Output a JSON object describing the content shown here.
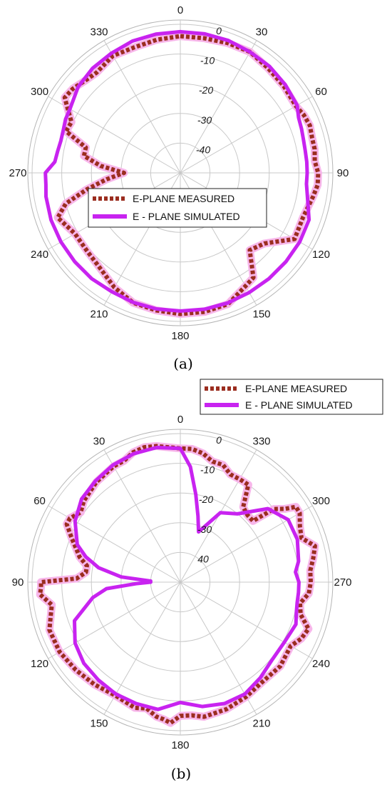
{
  "colors": {
    "measured": "#9b2d1f",
    "measured_halo": "#f7b6ea",
    "simulated": "#c823f0",
    "grid": "#c8c8c8",
    "ring": "#b4b4b4"
  },
  "chart_data": [
    {
      "type": "polar-line",
      "caption": "(a)",
      "angle_direction": "clockwise",
      "angle_ticks": [
        "0",
        "30",
        "60",
        "90",
        "120",
        "150",
        "180",
        "210",
        "240",
        "270",
        "300",
        "330"
      ],
      "radial_ticks": [
        "0",
        "-10",
        "-20",
        "-30",
        "-40"
      ],
      "rlim": [
        -50,
        0
      ],
      "legend_position": "center",
      "series": [
        {
          "name": "E-PLANE MEASURED",
          "theta": [
            0,
            10,
            20,
            30,
            40,
            50,
            60,
            65,
            70,
            75,
            80,
            85,
            90,
            95,
            100,
            110,
            120,
            130,
            138,
            145,
            150,
            160,
            170,
            180,
            190,
            200,
            210,
            220,
            230,
            240,
            250,
            255,
            260,
            265,
            270,
            275,
            280,
            285,
            290,
            295,
            300,
            303,
            308,
            315,
            320,
            330,
            340,
            350,
            360
          ],
          "r": [
            -4,
            -4,
            -3.5,
            -3,
            -4,
            -4.5,
            -5,
            -4,
            -3.5,
            -4,
            -4,
            -4.5,
            -3.5,
            -3.5,
            -4.5,
            -6,
            -5.5,
            -13,
            -15,
            -7,
            -6,
            -3,
            -2.5,
            -2.5,
            -3,
            -3.5,
            -5.5,
            -8,
            -9,
            -9,
            -6,
            -10,
            -18,
            -25,
            -31,
            -23,
            -17,
            -17,
            -9,
            -9.5,
            -6,
            -3.5,
            -4,
            -5.5,
            -6,
            -4.5,
            -5,
            -4.5,
            -4
          ]
        },
        {
          "name": "E - PLANE SIMULATED",
          "theta": [
            0,
            10,
            20,
            30,
            40,
            50,
            60,
            65,
            70,
            75,
            80,
            85,
            90,
            95,
            100,
            110,
            120,
            130,
            140,
            150,
            160,
            170,
            180,
            190,
            200,
            210,
            220,
            230,
            240,
            250,
            260,
            265,
            270,
            275,
            280,
            285,
            290,
            295,
            300,
            310,
            320,
            330,
            340,
            350,
            360
          ],
          "r": [
            -2.5,
            -2.5,
            -2.6,
            -3,
            -3.2,
            -3.8,
            -4.5,
            -6,
            -6.5,
            -7,
            -7.2,
            -7.2,
            -7.2,
            -7.3,
            -6.5,
            -3.8,
            -3.5,
            -3.5,
            -3.5,
            -3.5,
            -3.4,
            -3.4,
            -3.5,
            -3.5,
            -3.6,
            -3.8,
            -3.5,
            -3.5,
            -3.5,
            -3.6,
            -4,
            -4.5,
            -4.5,
            -7.5,
            -8,
            -8.3,
            -8,
            -7.3,
            -7,
            -5,
            -4,
            -3.5,
            -2.8,
            -2.6,
            -2.5
          ]
        }
      ]
    },
    {
      "type": "polar-line",
      "caption": "(b)",
      "angle_direction": "counterclockwise",
      "angle_ticks": [
        "0",
        "330",
        "300",
        "270",
        "240",
        "210",
        "180",
        "150",
        "120",
        "90",
        "60",
        "30"
      ],
      "radial_ticks": [
        "0",
        "-10",
        "-20",
        "-30",
        "40"
      ],
      "rlim": [
        -50,
        0
      ],
      "legend_position": "top-right",
      "series": [
        {
          "name": "E-PLANE MEASURED",
          "theta": [
            0,
            10,
            15,
            20,
            25,
            30,
            40,
            50,
            55,
            60,
            63,
            68,
            72,
            76,
            80,
            84,
            88,
            90,
            92,
            95,
            100,
            110,
            120,
            130,
            140,
            150,
            160,
            165,
            170,
            173,
            176,
            180,
            185,
            190,
            200,
            210,
            220,
            230,
            240,
            245,
            250,
            255,
            260,
            265,
            270,
            275,
            280,
            285,
            290,
            295,
            300,
            303,
            305,
            308,
            310,
            315,
            320,
            325,
            328,
            330,
            335,
            340,
            345,
            350,
            355,
            360
          ],
          "r": [
            -5,
            -3.5,
            -3,
            -3.5,
            -5,
            -5,
            -6,
            -7.5,
            -9,
            -7,
            -7,
            -10.5,
            -13,
            -15,
            -18,
            -18,
            -15,
            -3,
            -3,
            -2.5,
            -6,
            -3,
            -3,
            -4,
            -5,
            -6,
            -5,
            -6,
            -4,
            -3.5,
            -2.5,
            -5,
            -5,
            -4,
            -4.5,
            -5.5,
            -6.5,
            -6,
            -7,
            -5,
            -4,
            -8,
            -9,
            -6.5,
            -6,
            -6,
            -4.5,
            -3,
            -6.5,
            -5.5,
            -3.5,
            -3.5,
            -7,
            -10,
            -18,
            -18,
            -17,
            -10,
            -10,
            -10,
            -10,
            -8,
            -8,
            -6,
            -5,
            -5
          ]
        },
        {
          "name": "E - PLANE SIMULATED",
          "theta": [
            0,
            10,
            20,
            30,
            40,
            50,
            60,
            70,
            75,
            80,
            85,
            88,
            90,
            92,
            95,
            100,
            110,
            120,
            130,
            140,
            150,
            160,
            170,
            180,
            190,
            200,
            210,
            220,
            230,
            240,
            250,
            255,
            260,
            265,
            270,
            275,
            280,
            290,
            300,
            310,
            320,
            330,
            340,
            345,
            350,
            355,
            360
          ],
          "r": [
            -5,
            -4,
            -4,
            -4.5,
            -5.5,
            -6.5,
            -9,
            -13,
            -17,
            -22,
            -30,
            -40,
            -40,
            -35,
            -25,
            -20,
            -12,
            -9,
            -7.5,
            -7,
            -6.5,
            -6.5,
            -6.5,
            -9.5,
            -7.5,
            -6.5,
            -6.5,
            -8,
            -9.5,
            -9.5,
            -8.5,
            -9.5,
            -10,
            -10,
            -10,
            -11,
            -9.5,
            -8,
            -8,
            -11.5,
            -20,
            -23,
            -32,
            -27,
            -20,
            -11,
            -5
          ]
        }
      ]
    }
  ]
}
